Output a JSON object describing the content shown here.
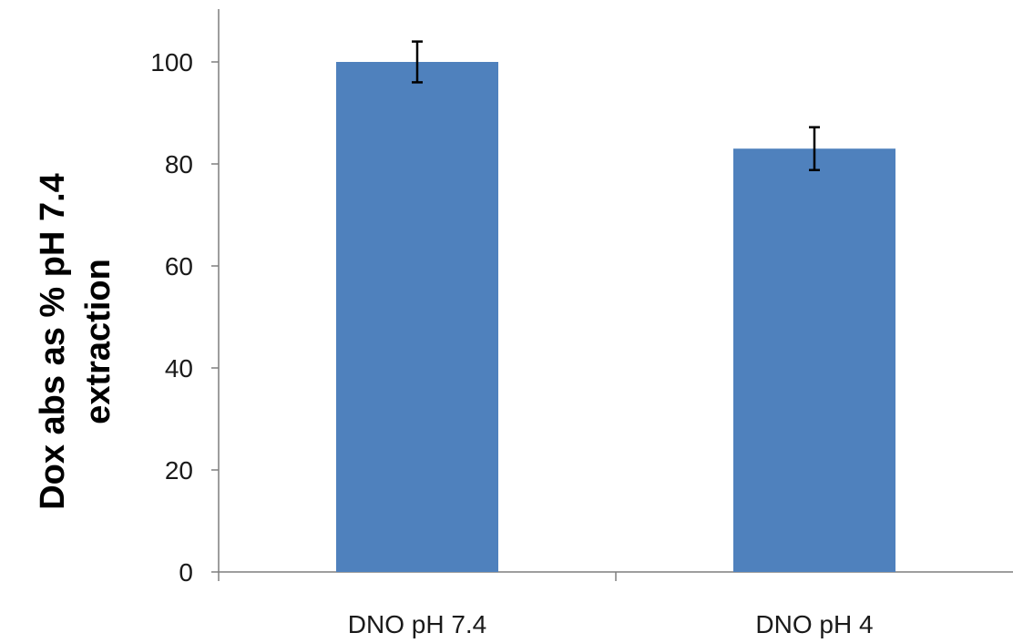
{
  "chart_data": {
    "type": "bar",
    "categories": [
      "DNO pH 7.4",
      "DNO pH 4"
    ],
    "series": [
      {
        "values": [
          100,
          83
        ],
        "error": [
          4,
          4.2
        ],
        "color": "#4F81BD"
      }
    ],
    "ylabel_lines": [
      "Dox abs as % pH 7.4",
      "extraction"
    ],
    "xlabel": "",
    "ylim": [
      0,
      110
    ],
    "yticks": [
      0,
      20,
      40,
      60,
      80,
      100
    ],
    "grid": false,
    "legend": "none"
  }
}
